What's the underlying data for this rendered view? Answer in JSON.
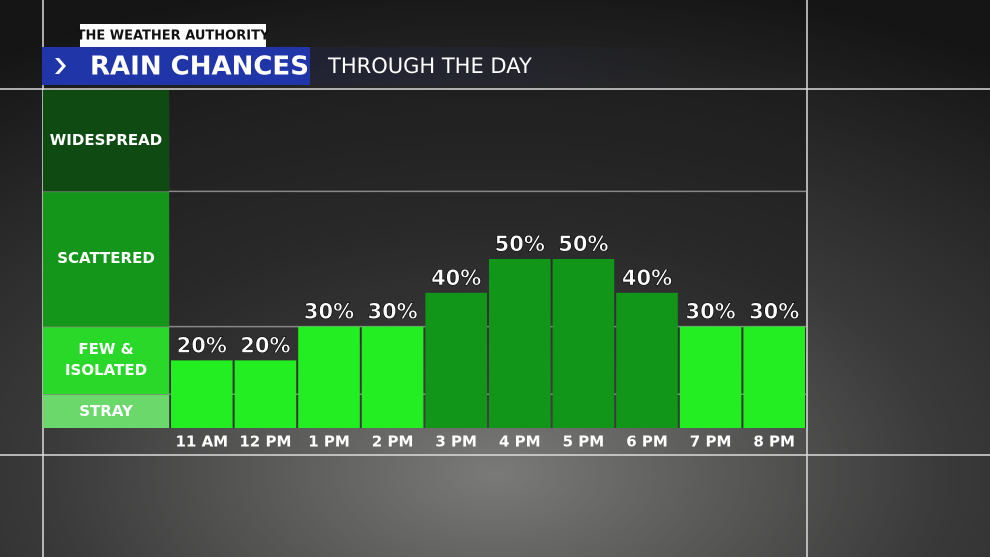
{
  "brand": "THE WEATHER AUTHORITY",
  "header": {
    "title": "RAIN CHANCES",
    "subtitle": "THROUGH THE DAY"
  },
  "chart_data": {
    "type": "bar",
    "categories": [
      "11 AM",
      "12 PM",
      "1 PM",
      "2 PM",
      "3 PM",
      "4 PM",
      "5 PM",
      "6 PM",
      "7 PM",
      "8 PM"
    ],
    "values": [
      20,
      20,
      30,
      30,
      40,
      50,
      50,
      40,
      30,
      30
    ],
    "value_labels": [
      "20%",
      "20%",
      "30%",
      "30%",
      "40%",
      "50%",
      "50%",
      "40%",
      "30%",
      "30%"
    ],
    "colors": [
      "#22ee22",
      "#22ee22",
      "#22ee22",
      "#22ee22",
      "#11961a",
      "#11961a",
      "#11961a",
      "#11961a",
      "#22ee22",
      "#22ee22"
    ],
    "ylim": [
      0,
      100
    ],
    "bands": [
      {
        "label": "STRAY",
        "from": 0,
        "to": 10,
        "color": "#6bd86b"
      },
      {
        "label": "FEW & ISOLATED",
        "from": 10,
        "to": 30,
        "color": "#2ad82a"
      },
      {
        "label": "SCATTERED",
        "from": 30,
        "to": 70,
        "color": "#14961a"
      },
      {
        "label": "WIDESPREAD",
        "from": 70,
        "to": 100,
        "color": "#0e4a12"
      }
    ]
  }
}
